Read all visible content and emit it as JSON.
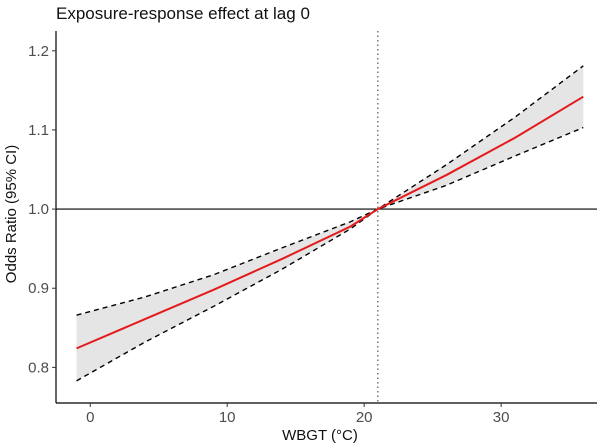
{
  "chart_data": {
    "type": "line",
    "title": "Exposure-response effect at lag 0",
    "xlabel": "WBGT (°C)",
    "ylabel": "Odds Ratio (95% CI)",
    "xlim": [
      -2.5,
      37
    ],
    "ylim": [
      0.755,
      1.225
    ],
    "x_ticks": [
      0,
      10,
      20,
      30
    ],
    "x_tick_labels": [
      "0",
      "10",
      "20",
      "30"
    ],
    "y_ticks": [
      0.8,
      0.9,
      1.0,
      1.1,
      1.2
    ],
    "y_tick_labels": [
      "0.8",
      "0.9",
      "1.0",
      "1.1",
      "1.2"
    ],
    "reference_x": 21,
    "reference_y": 1.0,
    "grid": false,
    "series": [
      {
        "x": [
          -1,
          4,
          9,
          14,
          19,
          21,
          26,
          31,
          36
        ],
        "values": [
          0.824,
          0.861,
          0.898,
          0.937,
          0.978,
          1.0,
          1.043,
          1.09,
          1.142
        ],
        "style": "solid",
        "color": "#e41a1c"
      },
      {
        "x": [
          -1,
          4,
          9,
          14,
          19,
          21,
          26,
          31,
          36
        ],
        "values": [
          0.783,
          0.832,
          0.877,
          0.924,
          0.975,
          1.0,
          1.03,
          1.067,
          1.103
        ],
        "style": "dashed",
        "color": "#000000"
      },
      {
        "x": [
          -1,
          4,
          9,
          14,
          19,
          21,
          26,
          31,
          36
        ],
        "values": [
          0.866,
          0.889,
          0.917,
          0.951,
          0.984,
          1.0,
          1.056,
          1.116,
          1.181
        ],
        "style": "dashed",
        "color": "#000000"
      }
    ],
    "ci_fill_color": "#e5e5e5"
  }
}
